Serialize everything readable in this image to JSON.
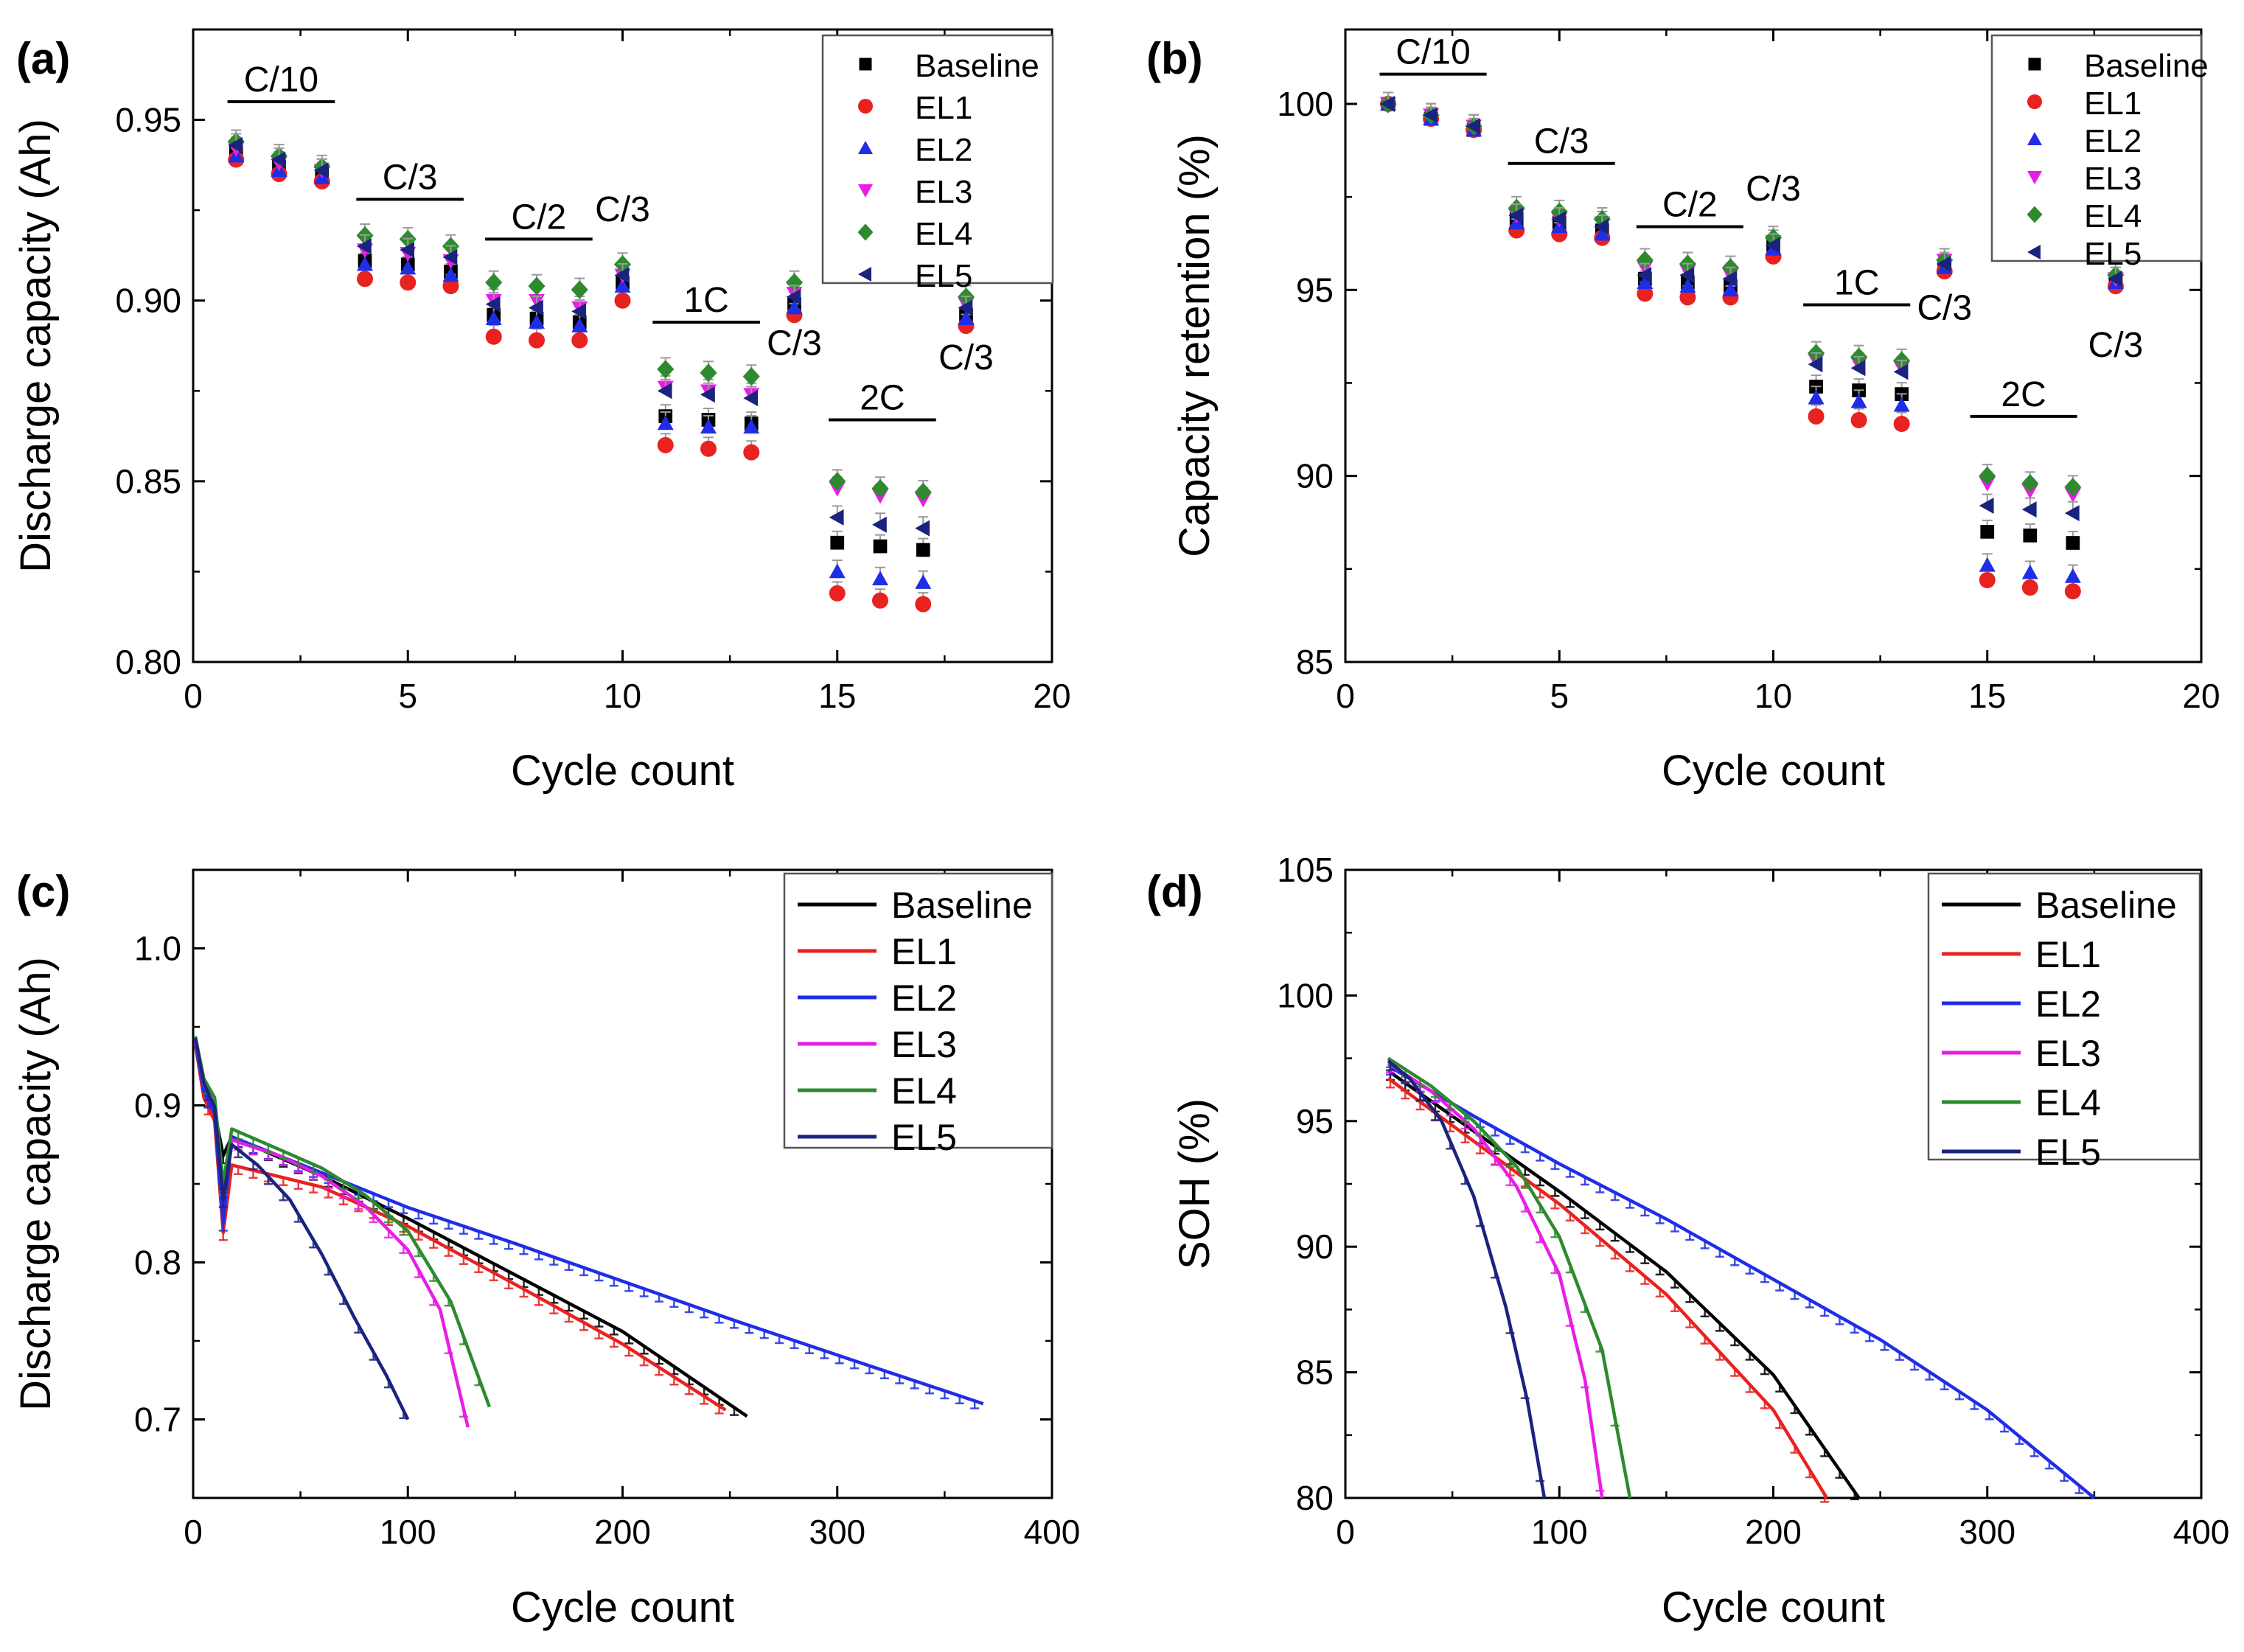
{
  "figure": {
    "colors": {
      "Baseline": "#000000",
      "EL1": "#e8221f",
      "EL2": "#1f2ee6",
      "EL3": "#e81ee6",
      "EL4": "#2e8a2e",
      "EL5": "#1a237e",
      "errorbar": "#9a9a9a"
    },
    "marker_icons": {
      "Baseline": "square-icon",
      "EL1": "circle-icon",
      "EL2": "triangle-up-icon",
      "EL3": "triangle-down-icon",
      "EL4": "diamond-icon",
      "EL5": "triangle-left-icon"
    }
  },
  "chart_data": [
    {
      "panel": "(a)",
      "type": "scatter",
      "title": "",
      "xlabel": "Cycle count",
      "ylabel": "Discharge capacity (Ah)",
      "xlim": [
        0,
        20
      ],
      "ylim": [
        0.8,
        0.975
      ],
      "xticks": [
        0,
        5,
        10,
        15,
        20
      ],
      "yticks": [
        0.8,
        0.85,
        0.9,
        0.95
      ],
      "xticklabels": [
        "0",
        "5",
        "10",
        "15",
        "20"
      ],
      "yticklabels": [
        "0.80",
        "0.85",
        "0.90",
        "0.95"
      ],
      "legend_position": "top-right",
      "x": [
        1,
        2,
        3,
        4,
        5,
        6,
        7,
        8,
        9,
        10,
        11,
        12,
        13,
        14,
        15,
        16,
        17,
        18
      ],
      "series": [
        {
          "name": "Baseline",
          "values": [
            0.941,
            0.937,
            0.935,
            0.911,
            0.91,
            0.908,
            0.896,
            0.895,
            0.894,
            0.905,
            0.868,
            0.867,
            0.866,
            0.899,
            0.833,
            0.832,
            0.831,
            0.896
          ]
        },
        {
          "name": "EL1",
          "values": [
            0.939,
            0.935,
            0.933,
            0.906,
            0.905,
            0.904,
            0.89,
            0.889,
            0.889,
            0.9,
            0.86,
            0.859,
            0.858,
            0.896,
            0.819,
            0.817,
            0.816,
            0.893
          ]
        },
        {
          "name": "EL2",
          "values": [
            0.94,
            0.936,
            0.934,
            0.91,
            0.909,
            0.907,
            0.895,
            0.894,
            0.893,
            0.904,
            0.866,
            0.865,
            0.865,
            0.898,
            0.825,
            0.823,
            0.822,
            0.895
          ]
        },
        {
          "name": "EL3",
          "values": [
            0.942,
            0.938,
            0.936,
            0.914,
            0.913,
            0.911,
            0.9,
            0.9,
            0.898,
            0.907,
            0.876,
            0.875,
            0.874,
            0.902,
            0.848,
            0.846,
            0.845,
            0.899
          ]
        },
        {
          "name": "EL4",
          "values": [
            0.944,
            0.94,
            0.937,
            0.918,
            0.917,
            0.915,
            0.905,
            0.904,
            0.903,
            0.91,
            0.881,
            0.88,
            0.879,
            0.905,
            0.85,
            0.848,
            0.847,
            0.901
          ]
        },
        {
          "name": "EL5",
          "values": [
            0.943,
            0.939,
            0.936,
            0.915,
            0.914,
            0.912,
            0.899,
            0.898,
            0.897,
            0.907,
            0.875,
            0.874,
            0.873,
            0.901,
            0.84,
            0.838,
            0.837,
            0.898
          ]
        }
      ],
      "annotations": [
        {
          "text": "C/10",
          "x1": 0.8,
          "x2": 3.3,
          "y": 0.955
        },
        {
          "text": "C/3",
          "x1": 3.8,
          "x2": 6.3,
          "y": 0.928
        },
        {
          "text": "C/2",
          "x1": 6.8,
          "x2": 9.3,
          "y": 0.917
        },
        {
          "text": "C/3",
          "x": 10.0,
          "y": 0.922
        },
        {
          "text": "1C",
          "x1": 10.7,
          "x2": 13.2,
          "y": 0.894
        },
        {
          "text": "C/3",
          "x": 14.0,
          "y": 0.885
        },
        {
          "text": "2C",
          "x1": 14.8,
          "x2": 17.3,
          "y": 0.867
        },
        {
          "text": "C/3",
          "x": 18.0,
          "y": 0.881
        }
      ]
    },
    {
      "panel": "(b)",
      "type": "scatter",
      "title": "",
      "xlabel": "Cycle count",
      "ylabel": "Capacity retention (%)",
      "xlim": [
        0,
        20
      ],
      "ylim": [
        85,
        102
      ],
      "xticks": [
        0,
        5,
        10,
        15,
        20
      ],
      "yticks": [
        85,
        90,
        95,
        100
      ],
      "xticklabels": [
        "0",
        "5",
        "10",
        "15",
        "20"
      ],
      "yticklabels": [
        "85",
        "90",
        "95",
        "100"
      ],
      "legend_position": "top-right",
      "x": [
        1,
        2,
        3,
        4,
        5,
        6,
        7,
        8,
        9,
        10,
        11,
        12,
        13,
        14,
        15,
        16,
        17,
        18
      ],
      "series": [
        {
          "name": "Baseline",
          "values": [
            100.0,
            99.6,
            99.3,
            96.9,
            96.8,
            96.6,
            95.3,
            95.2,
            95.1,
            96.2,
            92.4,
            92.3,
            92.2,
            95.6,
            88.5,
            88.4,
            88.2,
            95.2
          ]
        },
        {
          "name": "EL1",
          "values": [
            100.0,
            99.6,
            99.3,
            96.6,
            96.5,
            96.4,
            94.9,
            94.8,
            94.8,
            95.9,
            91.6,
            91.5,
            91.4,
            95.5,
            87.2,
            87.0,
            86.9,
            95.1
          ]
        },
        {
          "name": "EL2",
          "values": [
            100.0,
            99.6,
            99.3,
            96.8,
            96.7,
            96.5,
            95.2,
            95.1,
            95.0,
            96.1,
            92.1,
            92.0,
            91.9,
            95.6,
            87.6,
            87.4,
            87.3,
            95.2
          ]
        },
        {
          "name": "EL3",
          "values": [
            100.0,
            99.7,
            99.4,
            97.0,
            96.9,
            96.8,
            95.6,
            95.5,
            95.4,
            96.3,
            93.1,
            93.0,
            92.9,
            95.8,
            89.8,
            89.6,
            89.5,
            95.3
          ]
        },
        {
          "name": "EL4",
          "values": [
            100.0,
            99.7,
            99.4,
            97.2,
            97.1,
            96.9,
            95.8,
            95.7,
            95.6,
            96.4,
            93.3,
            93.2,
            93.1,
            95.8,
            90.0,
            89.8,
            89.7,
            95.4
          ]
        },
        {
          "name": "EL5",
          "values": [
            100.0,
            99.7,
            99.4,
            97.0,
            96.9,
            96.7,
            95.4,
            95.4,
            95.3,
            96.2,
            93.0,
            92.9,
            92.8,
            95.7,
            89.2,
            89.1,
            89.0,
            95.3
          ]
        }
      ],
      "annotations": [
        {
          "text": "C/10",
          "x1": 0.8,
          "x2": 3.3,
          "y": 100.8
        },
        {
          "text": "C/3",
          "x1": 3.8,
          "x2": 6.3,
          "y": 98.4
        },
        {
          "text": "C/2",
          "x1": 6.8,
          "x2": 9.3,
          "y": 96.7
        },
        {
          "text": "C/3",
          "x": 10.0,
          "y": 97.4
        },
        {
          "text": "1C",
          "x1": 10.7,
          "x2": 13.2,
          "y": 94.6
        },
        {
          "text": "C/3",
          "x": 14.0,
          "y": 94.2
        },
        {
          "text": "2C",
          "x1": 14.6,
          "x2": 17.1,
          "y": 91.6
        },
        {
          "text": "C/3",
          "x": 18.0,
          "y": 93.2
        }
      ]
    },
    {
      "panel": "(c)",
      "type": "line",
      "title": "",
      "xlabel": "Cycle count",
      "ylabel": "Discharge capacity (Ah)",
      "xlim": [
        0,
        400
      ],
      "ylim": [
        0.65,
        1.05
      ],
      "xticks": [
        0,
        100,
        200,
        300,
        400
      ],
      "yticks": [
        0.7,
        0.8,
        0.9,
        1.0
      ],
      "xticklabels": [
        "0",
        "100",
        "200",
        "300",
        "400"
      ],
      "yticklabels": [
        "0.7",
        "0.8",
        "0.9",
        "1.0"
      ],
      "legend_position": "top-right",
      "series": [
        {
          "name": "Baseline",
          "x": [
            1,
            5,
            10,
            14,
            18,
            60,
            100,
            150,
            200,
            258
          ],
          "values": [
            0.941,
            0.91,
            0.896,
            0.868,
            0.88,
            0.855,
            0.828,
            0.792,
            0.756,
            0.702
          ]
        },
        {
          "name": "EL1",
          "x": [
            1,
            5,
            10,
            14,
            18,
            60,
            100,
            150,
            200,
            248
          ],
          "values": [
            0.939,
            0.905,
            0.89,
            0.819,
            0.862,
            0.848,
            0.823,
            0.786,
            0.748,
            0.706
          ]
        },
        {
          "name": "EL2",
          "x": [
            1,
            5,
            10,
            14,
            18,
            60,
            100,
            150,
            200,
            250,
            300,
            368
          ],
          "values": [
            0.94,
            0.909,
            0.895,
            0.825,
            0.88,
            0.857,
            0.835,
            0.812,
            0.788,
            0.764,
            0.741,
            0.71
          ]
        },
        {
          "name": "EL3",
          "x": [
            1,
            5,
            10,
            14,
            18,
            40,
            60,
            80,
            100,
            115,
            128
          ],
          "values": [
            0.942,
            0.913,
            0.9,
            0.848,
            0.878,
            0.868,
            0.855,
            0.836,
            0.808,
            0.77,
            0.695
          ]
        },
        {
          "name": "EL4",
          "x": [
            1,
            5,
            10,
            14,
            18,
            40,
            60,
            80,
            100,
            120,
            138
          ],
          "values": [
            0.944,
            0.917,
            0.905,
            0.85,
            0.885,
            0.872,
            0.86,
            0.843,
            0.82,
            0.775,
            0.708
          ]
        },
        {
          "name": "EL5",
          "x": [
            1,
            5,
            10,
            14,
            18,
            30,
            45,
            60,
            75,
            90,
            100
          ],
          "values": [
            0.943,
            0.914,
            0.899,
            0.84,
            0.875,
            0.862,
            0.84,
            0.805,
            0.765,
            0.728,
            0.7
          ]
        }
      ]
    },
    {
      "panel": "(d)",
      "type": "line",
      "title": "",
      "xlabel": "Cycle count",
      "ylabel": "SOH (%)",
      "xlim": [
        0,
        400
      ],
      "ylim": [
        80,
        105
      ],
      "xticks": [
        0,
        100,
        200,
        300,
        400
      ],
      "yticks": [
        80,
        85,
        90,
        95,
        100,
        105
      ],
      "xticklabels": [
        "0",
        "100",
        "200",
        "300",
        "400"
      ],
      "yticklabels": [
        "80",
        "85",
        "90",
        "95",
        "100",
        "105"
      ],
      "legend_position": "top-right",
      "series": [
        {
          "name": "Baseline",
          "x": [
            20,
            60,
            100,
            150,
            200,
            240
          ],
          "values": [
            97.0,
            94.6,
            92.2,
            89.0,
            84.9,
            80.0
          ]
        },
        {
          "name": "EL1",
          "x": [
            20,
            60,
            100,
            150,
            200,
            225
          ],
          "values": [
            96.7,
            94.2,
            91.7,
            88.1,
            83.5,
            80.0
          ]
        },
        {
          "name": "EL2",
          "x": [
            20,
            60,
            100,
            150,
            200,
            250,
            300,
            350
          ],
          "values": [
            97.2,
            95.2,
            93.3,
            91.1,
            88.7,
            86.3,
            83.5,
            80.0
          ]
        },
        {
          "name": "EL3",
          "x": [
            20,
            40,
            60,
            80,
            100,
            112,
            120
          ],
          "values": [
            97.3,
            96.2,
            94.7,
            92.4,
            88.9,
            84.7,
            80.0
          ]
        },
        {
          "name": "EL4",
          "x": [
            20,
            40,
            60,
            80,
            100,
            120,
            133
          ],
          "values": [
            97.5,
            96.4,
            95.0,
            93.2,
            90.4,
            85.9,
            80.0
          ]
        },
        {
          "name": "EL5",
          "x": [
            20,
            30,
            45,
            60,
            75,
            85,
            93
          ],
          "values": [
            97.4,
            96.7,
            95.0,
            92.0,
            87.6,
            83.9,
            80.0
          ]
        }
      ]
    }
  ]
}
